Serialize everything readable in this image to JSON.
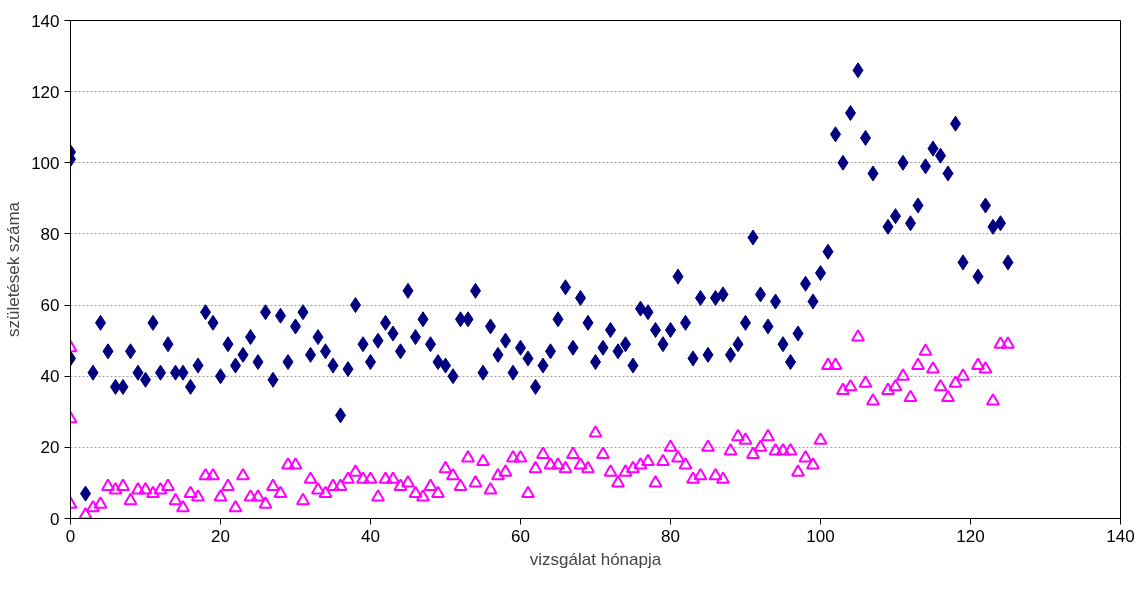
{
  "chart_data": {
    "type": "scatter",
    "xlabel": "vizsgálat hónapja",
    "ylabel": "születések száma",
    "xlim": [
      0,
      140
    ],
    "ylim": [
      0,
      140
    ],
    "xticks": [
      0,
      20,
      40,
      60,
      80,
      100,
      120,
      140
    ],
    "yticks": [
      0,
      20,
      40,
      60,
      80,
      100,
      120,
      140
    ],
    "grid": "y",
    "x": [
      0,
      0,
      0,
      2,
      3,
      4,
      5,
      6,
      7,
      8,
      9,
      10,
      11,
      12,
      13,
      14,
      15,
      16,
      17,
      18,
      19,
      20,
      21,
      22,
      23,
      24,
      25,
      26,
      27,
      28,
      29,
      30,
      31,
      32,
      33,
      34,
      35,
      36,
      37,
      38,
      39,
      40,
      41,
      42,
      43,
      44,
      45,
      46,
      47,
      48,
      49,
      50,
      51,
      52,
      53,
      54,
      55,
      56,
      57,
      58,
      59,
      60,
      61,
      62,
      63,
      64,
      65,
      66,
      67,
      68,
      69,
      70,
      71,
      72,
      73,
      74,
      75,
      76,
      77,
      78,
      79,
      80,
      81,
      82,
      83,
      84,
      85,
      86,
      87,
      88,
      89,
      90,
      91,
      92,
      93,
      94,
      95,
      96,
      97,
      98,
      99,
      100,
      101,
      102,
      103,
      104,
      105,
      106,
      107,
      109,
      110,
      111,
      112,
      113,
      114,
      115,
      116,
      117,
      118,
      119,
      121,
      122,
      123,
      124,
      125
    ],
    "series": [
      {
        "color": "#000080",
        "marker": "diamond",
        "values": [
          45,
          101,
          103,
          7,
          41,
          55,
          47,
          37,
          37,
          47,
          41,
          39,
          55,
          41,
          49,
          41,
          41,
          37,
          43,
          58,
          55,
          40,
          49,
          43,
          46,
          51,
          44,
          58,
          39,
          57,
          44,
          54,
          58,
          46,
          51,
          47,
          43,
          29,
          42,
          60,
          49,
          44,
          50,
          55,
          52,
          47,
          64,
          51,
          56,
          49,
          44,
          43,
          40,
          56,
          56,
          64,
          41,
          54,
          46,
          50,
          41,
          48,
          45,
          37,
          43,
          47,
          56,
          65,
          48,
          62,
          55,
          44,
          48,
          53,
          47,
          49,
          43,
          59,
          58,
          53,
          49,
          53,
          68,
          55,
          45,
          62,
          46,
          62,
          63,
          46,
          49,
          55,
          79,
          63,
          54,
          61,
          49,
          44,
          52,
          66,
          61,
          69,
          75,
          108,
          100,
          114,
          126,
          107,
          97,
          82,
          85,
          100,
          83,
          88,
          99,
          104,
          102,
          97,
          111,
          72,
          68,
          88,
          82,
          83,
          72
        ]
      },
      {
        "color": "#ff00ff",
        "marker": "triangle",
        "values": [
          4,
          28,
          48,
          1,
          3,
          4,
          9,
          8,
          9,
          5,
          8,
          8,
          7,
          8,
          9,
          5,
          3,
          7,
          6,
          12,
          12,
          6,
          9,
          3,
          12,
          6,
          6,
          4,
          9,
          7,
          15,
          15,
          5,
          11,
          8,
          7,
          9,
          9,
          11,
          13,
          11,
          11,
          6,
          11,
          11,
          9,
          10,
          7,
          6,
          9,
          7,
          14,
          12,
          9,
          17,
          10,
          16,
          8,
          12,
          13,
          17,
          17,
          7,
          14,
          18,
          15,
          15,
          14,
          18,
          15,
          14,
          24,
          18,
          13,
          10,
          13,
          14,
          15,
          16,
          10,
          16,
          20,
          17,
          15,
          11,
          12,
          20,
          12,
          11,
          19,
          23,
          22,
          18,
          20,
          23,
          19,
          19,
          19,
          13,
          17,
          15,
          22,
          43,
          43,
          36,
          37,
          51,
          38,
          33,
          36,
          37,
          40,
          34,
          43,
          47,
          42,
          37,
          34,
          38,
          40,
          43,
          42,
          33,
          49,
          49
        ]
      }
    ]
  }
}
